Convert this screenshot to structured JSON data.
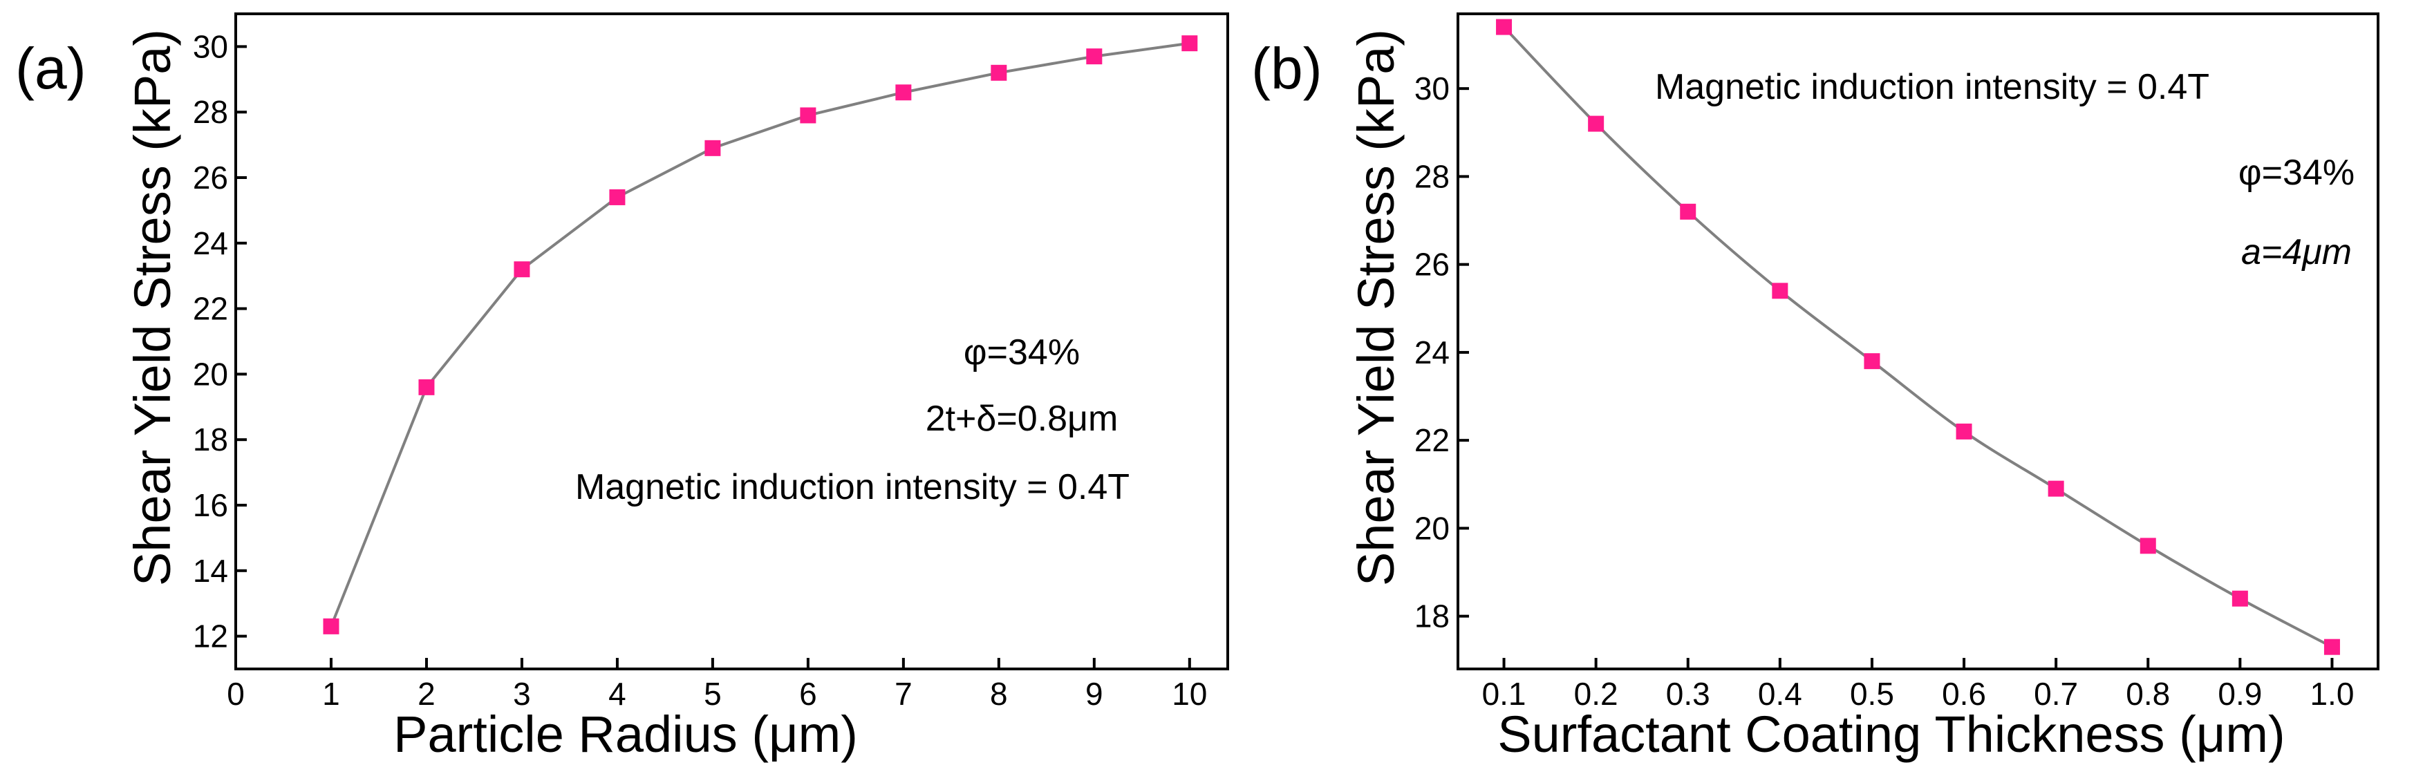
{
  "chart_data": [
    {
      "type": "line",
      "panel_label": "(a)",
      "title": "",
      "xlabel": "Particle Radius (μm)",
      "ylabel": "Shear Yield Stress (kPa)",
      "xlim": [
        0,
        10.4
      ],
      "ylim": [
        11,
        31
      ],
      "xticks": [
        0,
        1,
        2,
        3,
        4,
        5,
        6,
        7,
        8,
        9,
        10
      ],
      "xtick_labels": [
        "0",
        "1",
        "2",
        "3",
        "4",
        "5",
        "6",
        "7",
        "8",
        "9",
        "10"
      ],
      "yticks": [
        12,
        14,
        16,
        18,
        20,
        22,
        24,
        26,
        28,
        30
      ],
      "ytick_labels": [
        "12",
        "14",
        "16",
        "18",
        "20",
        "22",
        "24",
        "26",
        "28",
        "30"
      ],
      "grid": false,
      "series": [
        {
          "name": "Shear Yield Stress",
          "color": "#ff1a8c",
          "line_color": "#808080",
          "x": [
            1,
            2,
            3,
            4,
            5,
            6,
            7,
            8,
            9,
            10
          ],
          "y": [
            12.3,
            19.6,
            23.2,
            25.4,
            26.9,
            27.9,
            28.6,
            29.2,
            29.7,
            30.1
          ]
        }
      ],
      "annotations": [
        "φ=34%",
        "2t+δ=0.8μm",
        "Magnetic induction intensity = 0.4T"
      ]
    },
    {
      "type": "line",
      "panel_label": "(b)",
      "title": "",
      "xlabel": "Surfactant Coating Thickness (μm)",
      "ylabel": "Shear Yield Stress (kPa)",
      "xlim": [
        0.05,
        1.05
      ],
      "ylim": [
        16.8,
        31.7
      ],
      "xticks": [
        0.1,
        0.2,
        0.3,
        0.4,
        0.5,
        0.6,
        0.7,
        0.8,
        0.9,
        1.0
      ],
      "xtick_labels": [
        "0.1",
        "0.2",
        "0.3",
        "0.4",
        "0.5",
        "0.6",
        "0.7",
        "0.8",
        "0.9",
        "1.0"
      ],
      "yticks": [
        18,
        20,
        22,
        24,
        26,
        28,
        30
      ],
      "ytick_labels": [
        "18",
        "20",
        "22",
        "24",
        "26",
        "28",
        "30"
      ],
      "grid": false,
      "series": [
        {
          "name": "Shear Yield Stress",
          "color": "#ff1a8c",
          "line_color": "#808080",
          "x": [
            0.1,
            0.2,
            0.3,
            0.4,
            0.5,
            0.6,
            0.7,
            0.8,
            0.9,
            1.0
          ],
          "y": [
            31.4,
            29.2,
            27.2,
            25.4,
            23.8,
            22.2,
            20.9,
            19.6,
            18.4,
            17.3
          ]
        }
      ],
      "annotations": [
        "Magnetic induction intensity = 0.4T",
        "φ=34%",
        "a=4μm"
      ]
    }
  ]
}
